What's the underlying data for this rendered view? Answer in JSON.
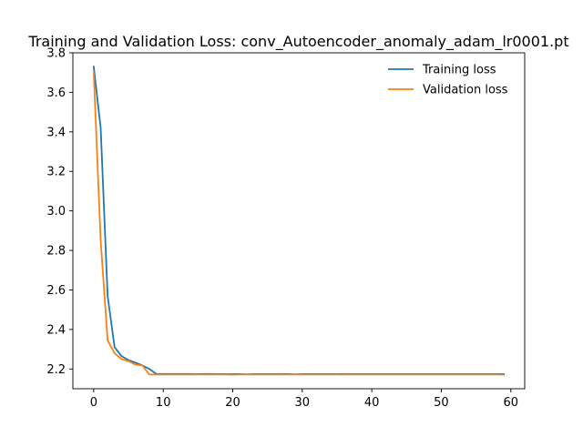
{
  "chart_data": {
    "type": "line",
    "title": "Training and Validation Loss: conv_Autoencoder_anomaly_adam_lr0001.pt",
    "xlabel": "",
    "ylabel": "",
    "xlim": [
      -3,
      62
    ],
    "ylim": [
      2.1,
      3.8
    ],
    "xticks": [
      0,
      10,
      20,
      30,
      40,
      50,
      60
    ],
    "yticks": [
      2.2,
      2.4,
      2.6,
      2.8,
      3.0,
      3.2,
      3.4,
      3.6,
      3.8
    ],
    "xtick_labels": [
      "0",
      "10",
      "20",
      "30",
      "40",
      "50",
      "60"
    ],
    "ytick_labels": [
      "2.2",
      "2.4",
      "2.6",
      "2.8",
      "3.0",
      "3.2",
      "3.4",
      "3.6",
      "3.8"
    ],
    "grid": false,
    "legend_position": "upper right",
    "x": [
      0,
      1,
      2,
      3,
      4,
      5,
      6,
      7,
      8,
      9,
      10,
      11,
      12,
      13,
      14,
      15,
      16,
      17,
      18,
      19,
      20,
      21,
      22,
      23,
      24,
      25,
      26,
      27,
      28,
      29,
      30,
      31,
      32,
      33,
      34,
      35,
      36,
      37,
      38,
      39,
      40,
      41,
      42,
      43,
      44,
      45,
      46,
      47,
      48,
      49,
      50,
      51,
      52,
      53,
      54,
      55,
      56,
      57,
      58,
      59
    ],
    "series": [
      {
        "name": "Training loss",
        "color": "#1f77b4",
        "values": [
          3.73,
          3.42,
          2.57,
          2.31,
          2.265,
          2.245,
          2.232,
          2.218,
          2.2,
          2.175,
          2.175,
          2.175,
          2.175,
          2.175,
          2.175,
          2.174,
          2.175,
          2.175,
          2.174,
          2.174,
          2.174,
          2.174,
          2.173,
          2.174,
          2.174,
          2.174,
          2.174,
          2.175,
          2.174,
          2.173,
          2.174,
          2.174,
          2.174,
          2.174,
          2.174,
          2.174,
          2.175,
          2.174,
          2.174,
          2.174,
          2.174,
          2.174,
          2.174,
          2.174,
          2.174,
          2.174,
          2.174,
          2.174,
          2.174,
          2.174,
          2.174,
          2.174,
          2.174,
          2.174,
          2.174,
          2.174,
          2.174,
          2.174,
          2.174,
          2.174
        ]
      },
      {
        "name": "Validation loss",
        "color": "#ff7f0e",
        "values": [
          3.7,
          2.85,
          2.345,
          2.28,
          2.25,
          2.24,
          2.222,
          2.218,
          2.172,
          2.172,
          2.172,
          2.172,
          2.172,
          2.172,
          2.172,
          2.172,
          2.172,
          2.172,
          2.172,
          2.172,
          2.171,
          2.172,
          2.172,
          2.172,
          2.172,
          2.172,
          2.172,
          2.172,
          2.172,
          2.172,
          2.172,
          2.172,
          2.172,
          2.172,
          2.172,
          2.172,
          2.172,
          2.172,
          2.172,
          2.172,
          2.172,
          2.172,
          2.172,
          2.172,
          2.172,
          2.172,
          2.172,
          2.172,
          2.172,
          2.172,
          2.172,
          2.172,
          2.172,
          2.172,
          2.172,
          2.172,
          2.172,
          2.172,
          2.172,
          2.171
        ]
      }
    ]
  }
}
